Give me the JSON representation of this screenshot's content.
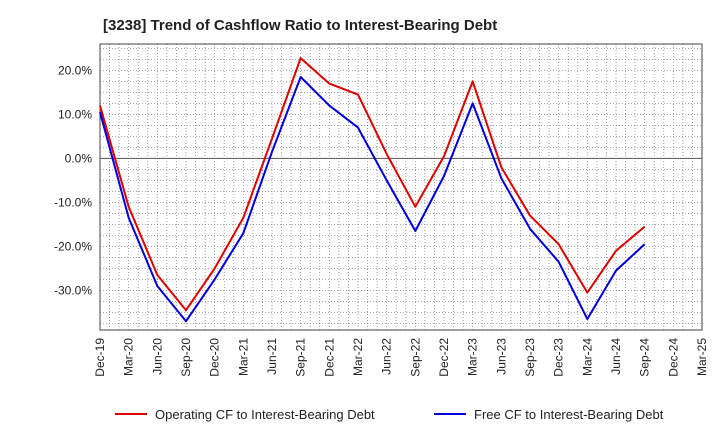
{
  "chart_data": {
    "type": "line",
    "title": "[3238]  Trend of Cashflow Ratio to Interest-Bearing Debt",
    "xlabel": "",
    "ylabel": "",
    "x": [
      "Dec-19",
      "Mar-20",
      "Jun-20",
      "Sep-20",
      "Dec-20",
      "Mar-21",
      "Jun-21",
      "Sep-21",
      "Dec-21",
      "Mar-22",
      "Jun-22",
      "Sep-22",
      "Dec-22",
      "Mar-23",
      "Jun-23",
      "Sep-23",
      "Dec-23",
      "Mar-24",
      "Jun-24",
      "Sep-24",
      "Dec-24",
      "Mar-25"
    ],
    "x_ticks": [
      "Dec-19",
      "Mar-20",
      "Jun-20",
      "Sep-20",
      "Dec-20",
      "Mar-21",
      "Jun-21",
      "Sep-21",
      "Dec-21",
      "Mar-22",
      "Jun-22",
      "Sep-22",
      "Dec-22",
      "Mar-23",
      "Jun-23",
      "Sep-23",
      "Dec-23",
      "Mar-24",
      "Jun-24",
      "Sep-24",
      "Dec-24",
      "Mar-25"
    ],
    "y_ticks": [
      20,
      10,
      0,
      -10,
      -20,
      -30
    ],
    "y_tick_labels": [
      "20.0%",
      "10.0%",
      "0.0%",
      "-10.0%",
      "-20.0%",
      "-30.0%"
    ],
    "ylim": [
      -39,
      26
    ],
    "grid": true,
    "legend_position": "bottom",
    "series": [
      {
        "name": "Operating CF to Interest-Bearing Debt",
        "color": "#dd0000",
        "values": [
          12.0,
          -11.0,
          -26.5,
          -34.5,
          -25.0,
          -13.5,
          4.5,
          22.8,
          17.0,
          14.5,
          1.0,
          -11.0,
          0.5,
          17.5,
          -2.0,
          -13.0,
          -19.5,
          -30.5,
          -21.0,
          -15.5,
          null,
          null
        ]
      },
      {
        "name": "Free CF to Interest-Bearing Debt",
        "color": "#0000dd",
        "values": [
          10.5,
          -13.5,
          -29.0,
          -37.0,
          -27.5,
          -17.0,
          1.5,
          18.5,
          12.0,
          7.0,
          -5.0,
          -16.5,
          -4.0,
          12.5,
          -4.5,
          -16.0,
          -23.5,
          -36.5,
          -25.5,
          -19.5,
          null,
          null
        ]
      }
    ]
  }
}
